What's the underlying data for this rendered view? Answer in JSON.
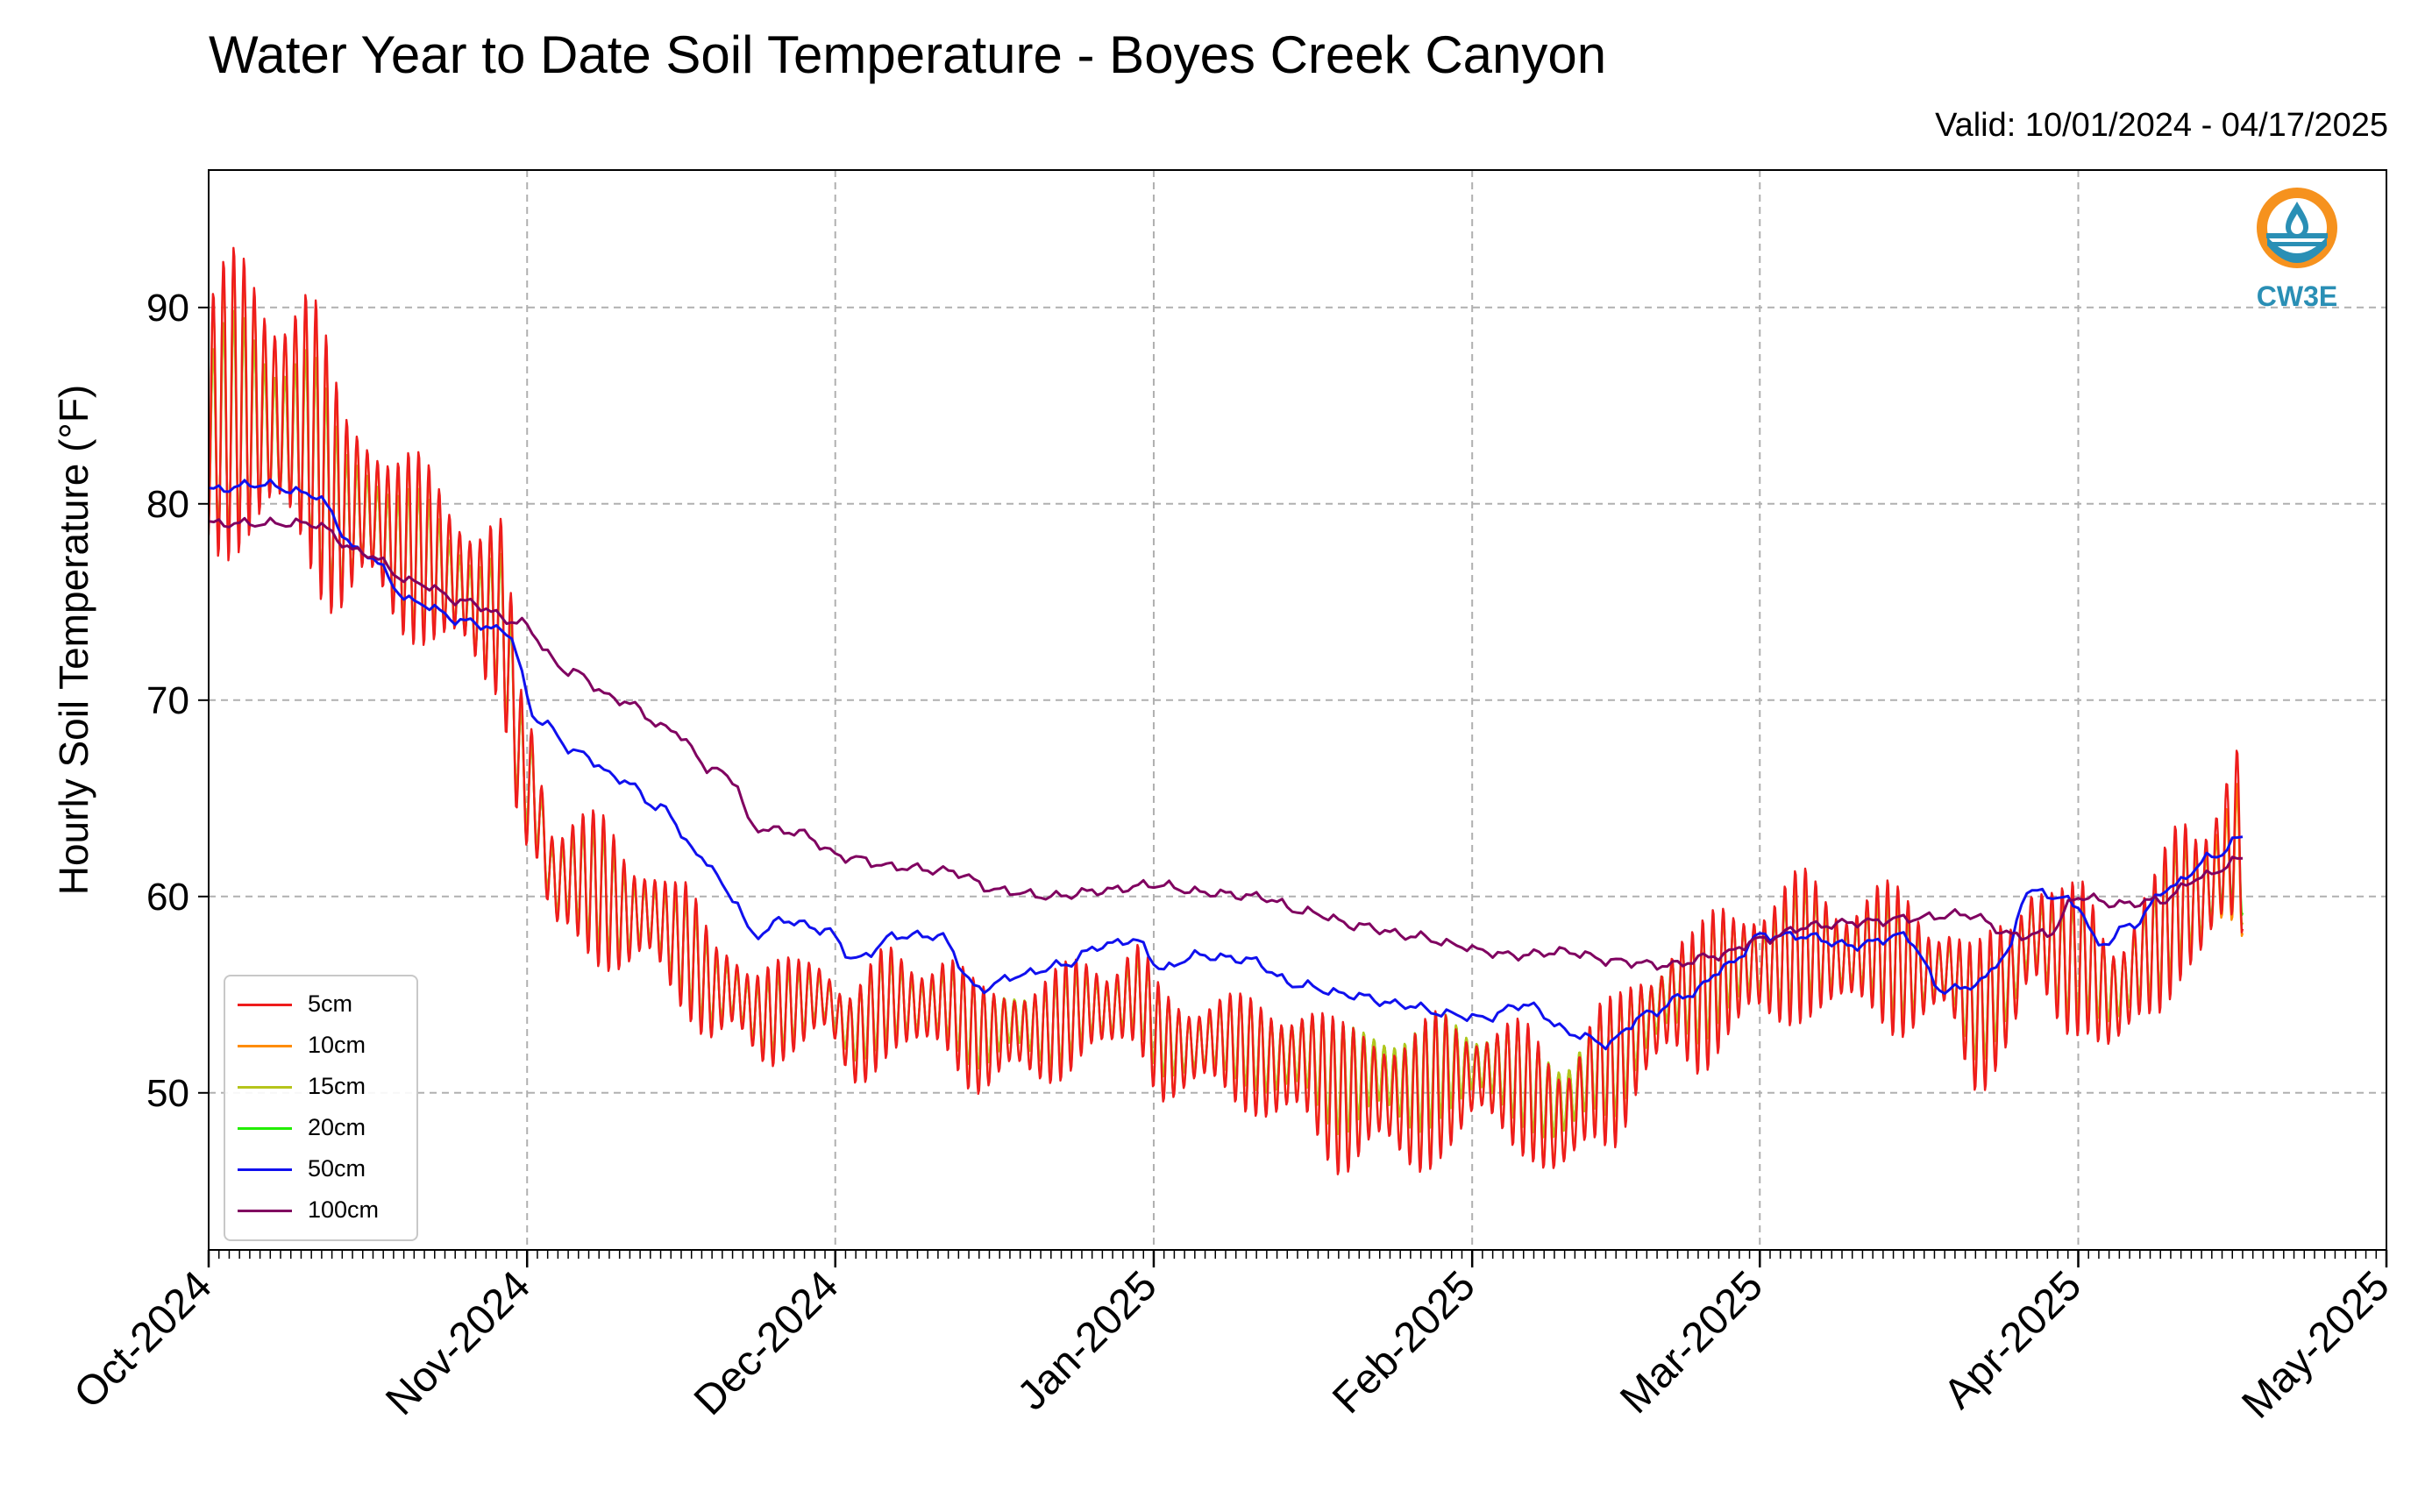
{
  "title": "Water Year to Date Soil Temperature - Boyes Creek Canyon",
  "subtitle": "Valid: 10/01/2024 - 04/17/2025",
  "logo_text": "CW3E",
  "chart_data": {
    "type": "line",
    "title": "Water Year to Date Soil Temperature - Boyes Creek Canyon",
    "subtitle": "Valid: 10/01/2024 - 04/17/2025",
    "xlabel": "",
    "ylabel": "Hourly Soil Temperature (°F)",
    "xlim": [
      "2024-10-01",
      "2025-05-01"
    ],
    "ylim": [
      42,
      97
    ],
    "x_ticks": [
      "2024-10-01",
      "2024-11-01",
      "2024-12-01",
      "2025-01-01",
      "2025-02-01",
      "2025-03-01",
      "2025-04-01",
      "2025-05-01"
    ],
    "x_tick_labels": [
      "Oct-2024",
      "Nov-2024",
      "Dec-2024",
      "Jan-2025",
      "Feb-2025",
      "Mar-2025",
      "Apr-2025",
      "May-2025"
    ],
    "y_ticks": [
      50,
      60,
      70,
      80,
      90
    ],
    "grid": true,
    "legend_position": "lower-left",
    "colors": {
      "5cm": "#ee1c1c",
      "10cm": "#ff8c00",
      "15cm": "#b5c41c",
      "20cm": "#22ee00",
      "50cm": "#1010ee",
      "100cm": "#800060"
    },
    "series": [
      {
        "name": "5cm",
        "color": "#ee1c1c",
        "x": [
          "2024-10-01",
          "2024-10-05",
          "2024-10-10",
          "2024-10-15",
          "2024-10-20",
          "2024-10-25",
          "2024-10-29",
          "2024-11-01",
          "2024-11-04",
          "2024-11-08",
          "2024-11-12",
          "2024-11-16",
          "2024-11-20",
          "2024-11-24",
          "2024-11-27",
          "2024-11-30",
          "2024-12-03",
          "2024-12-07",
          "2024-12-11",
          "2024-12-15",
          "2024-12-19",
          "2024-12-23",
          "2024-12-27",
          "2024-12-30",
          "2025-01-02",
          "2025-01-06",
          "2025-01-10",
          "2025-01-15",
          "2025-01-20",
          "2025-01-25",
          "2025-01-30",
          "2025-02-02",
          "2025-02-06",
          "2025-02-10",
          "2025-02-14",
          "2025-02-18",
          "2025-02-22",
          "2025-02-26",
          "2025-03-01",
          "2025-03-05",
          "2025-03-10",
          "2025-03-15",
          "2025-03-19",
          "2025-03-22",
          "2025-03-25",
          "2025-03-28",
          "2025-04-01",
          "2025-04-04",
          "2025-04-08",
          "2025-04-12",
          "2025-04-17"
        ],
        "mean": [
          84,
          85,
          84,
          80,
          78,
          76,
          75,
          66,
          61,
          60,
          59,
          58,
          55,
          54,
          54,
          55,
          53,
          55,
          54,
          53,
          53,
          54,
          54,
          55,
          52,
          53,
          52,
          51,
          50,
          50,
          50,
          51,
          50,
          49,
          51,
          53,
          55,
          56,
          57,
          57,
          57,
          57,
          56,
          54,
          55,
          58,
          57,
          55,
          57,
          60,
          63
        ],
        "amp": [
          8,
          8,
          8,
          6,
          5,
          5,
          5,
          4,
          4,
          4,
          3.5,
          3.5,
          3,
          3,
          2.5,
          2.5,
          3,
          3,
          3,
          3,
          3,
          3,
          3,
          3,
          3,
          3,
          3,
          4,
          4,
          4,
          4,
          3,
          3.5,
          4,
          4,
          3.5,
          4,
          4,
          4,
          4,
          3.5,
          4,
          3,
          4,
          4,
          4,
          4,
          4,
          4,
          4.5,
          6
        ]
      },
      {
        "name": "10cm",
        "color": "#ff8c00",
        "x": [
          "2024-10-01",
          "2024-10-05",
          "2024-10-10",
          "2024-10-15",
          "2024-10-20",
          "2024-10-25",
          "2024-10-29",
          "2024-11-01",
          "2024-11-04",
          "2024-11-08",
          "2024-11-12",
          "2024-11-16",
          "2024-11-20",
          "2024-11-24",
          "2024-11-27",
          "2024-11-30",
          "2024-12-03",
          "2024-12-07",
          "2024-12-11",
          "2024-12-15",
          "2024-12-19",
          "2024-12-23",
          "2024-12-27",
          "2024-12-30",
          "2025-01-02",
          "2025-01-06",
          "2025-01-10",
          "2025-01-15",
          "2025-01-20",
          "2025-01-25",
          "2025-01-30",
          "2025-02-02",
          "2025-02-06",
          "2025-02-10",
          "2025-02-14",
          "2025-02-18",
          "2025-02-22",
          "2025-02-26",
          "2025-03-01",
          "2025-03-05",
          "2025-03-10",
          "2025-03-15",
          "2025-03-19",
          "2025-03-22",
          "2025-03-25",
          "2025-03-28",
          "2025-04-01",
          "2025-04-04",
          "2025-04-08",
          "2025-04-12",
          "2025-04-17"
        ],
        "mean": [
          84,
          85,
          84,
          80,
          78,
          76,
          75,
          66,
          61,
          60,
          59,
          58,
          55,
          54,
          54,
          55,
          53,
          55,
          54,
          53,
          53,
          54,
          54,
          55,
          52,
          53,
          52,
          51,
          50,
          50,
          50,
          51,
          50,
          49,
          51,
          53,
          55,
          56,
          57,
          57,
          57,
          57,
          56,
          54,
          55,
          58,
          57,
          55,
          57,
          60,
          62
        ],
        "amp": [
          7.5,
          7.5,
          7.5,
          5.5,
          4.5,
          4.5,
          4.5,
          3.8,
          3.8,
          3.8,
          3.2,
          3.2,
          2.8,
          2.8,
          2.3,
          2.3,
          2.8,
          2.8,
          2.8,
          2.8,
          2.8,
          2.8,
          2.8,
          2.8,
          2.8,
          2.8,
          2.8,
          3.6,
          3.6,
          3.6,
          3.6,
          2.8,
          3.2,
          3.6,
          3.6,
          3.2,
          3.6,
          3.6,
          3.6,
          3.6,
          3.2,
          3.6,
          2.8,
          3.6,
          3.6,
          3.6,
          3.6,
          3.6,
          3.6,
          4,
          5
        ]
      },
      {
        "name": "15cm",
        "color": "#b5c41c",
        "x": [
          "2024-10-01",
          "2024-10-05",
          "2024-10-10",
          "2024-10-15",
          "2024-10-20",
          "2024-10-25",
          "2024-10-29",
          "2024-11-01",
          "2024-11-04",
          "2024-11-08",
          "2024-11-12",
          "2024-11-16",
          "2024-11-20",
          "2024-11-24",
          "2024-11-27",
          "2024-11-30",
          "2024-12-03",
          "2024-12-07",
          "2024-12-11",
          "2024-12-15",
          "2024-12-19",
          "2024-12-23",
          "2024-12-27",
          "2024-12-30",
          "2025-01-02",
          "2025-01-06",
          "2025-01-10",
          "2025-01-15",
          "2025-01-20",
          "2025-01-25",
          "2025-01-30",
          "2025-02-02",
          "2025-02-06",
          "2025-02-10",
          "2025-02-14",
          "2025-02-18",
          "2025-02-22",
          "2025-02-26",
          "2025-03-01",
          "2025-03-05",
          "2025-03-10",
          "2025-03-15",
          "2025-03-19",
          "2025-03-22",
          "2025-03-25",
          "2025-03-28",
          "2025-04-01",
          "2025-04-04",
          "2025-04-08",
          "2025-04-12",
          "2025-04-17"
        ],
        "mean": [
          83,
          84,
          83,
          79.5,
          77.5,
          75.5,
          74.5,
          66,
          61,
          60,
          59,
          58,
          55,
          54,
          54,
          55,
          53.5,
          55,
          54,
          53.5,
          53.5,
          54,
          54,
          55,
          52.5,
          53,
          52.5,
          51.5,
          51,
          51,
          51,
          51.5,
          50.5,
          50,
          51.5,
          53.5,
          55.5,
          56.5,
          57,
          57,
          57,
          57,
          56,
          54.5,
          55.5,
          58,
          57,
          55.5,
          57,
          60,
          62
        ]
      },
      {
        "name": "20cm",
        "color": "#22ee00",
        "x": [
          "2024-10-01",
          "2024-10-05",
          "2024-10-10",
          "2024-10-15",
          "2024-10-20",
          "2024-10-25",
          "2024-10-29",
          "2024-11-01",
          "2024-11-04",
          "2024-11-08",
          "2024-11-12",
          "2024-11-16",
          "2024-11-20",
          "2024-11-24",
          "2024-11-27",
          "2024-11-30",
          "2024-12-03",
          "2024-12-07",
          "2024-12-11",
          "2024-12-15",
          "2024-12-19",
          "2024-12-23",
          "2024-12-27",
          "2024-12-30",
          "2025-01-02",
          "2025-01-06",
          "2025-01-10",
          "2025-01-15",
          "2025-01-20",
          "2025-01-25",
          "2025-01-30",
          "2025-02-02",
          "2025-02-06",
          "2025-02-10",
          "2025-02-14",
          "2025-02-18",
          "2025-02-22",
          "2025-02-26",
          "2025-03-01",
          "2025-03-05",
          "2025-03-10",
          "2025-03-15",
          "2025-03-19",
          "2025-03-22",
          "2025-03-25",
          "2025-03-28",
          "2025-04-01",
          "2025-04-04",
          "2025-04-08",
          "2025-04-12",
          "2025-04-17"
        ],
        "mean": [
          83,
          84,
          83,
          79.5,
          77.5,
          75.5,
          74.5,
          66,
          61,
          60,
          59,
          58,
          55,
          54,
          54,
          55,
          53.5,
          55,
          54,
          53.5,
          53.5,
          54,
          54,
          55,
          52.5,
          53,
          52.5,
          51.5,
          51,
          51,
          51,
          51.5,
          50.5,
          50,
          51.5,
          53.5,
          55.5,
          56.5,
          57,
          57,
          57,
          57,
          56,
          54.5,
          55.5,
          58,
          57,
          55.5,
          57,
          60,
          62.5
        ]
      },
      {
        "name": "50cm",
        "color": "#1010ee",
        "x": [
          "2024-10-01",
          "2024-10-06",
          "2024-10-11",
          "2024-10-16",
          "2024-10-21",
          "2024-10-26",
          "2024-10-30",
          "2024-11-02",
          "2024-11-06",
          "2024-11-10",
          "2024-11-14",
          "2024-11-18",
          "2024-11-21",
          "2024-11-23",
          "2024-11-26",
          "2024-11-30",
          "2024-12-03",
          "2024-12-07",
          "2024-12-11",
          "2024-12-15",
          "2024-12-19",
          "2024-12-23",
          "2024-12-27",
          "2024-12-30",
          "2025-01-02",
          "2025-01-05",
          "2025-01-10",
          "2025-01-15",
          "2025-01-20",
          "2025-01-25",
          "2025-01-30",
          "2025-02-02",
          "2025-02-06",
          "2025-02-11",
          "2025-02-14",
          "2025-02-18",
          "2025-02-22",
          "2025-02-26",
          "2025-03-01",
          "2025-03-05",
          "2025-03-10",
          "2025-03-15",
          "2025-03-19",
          "2025-03-22",
          "2025-03-25",
          "2025-03-27",
          "2025-03-30",
          "2025-04-01",
          "2025-04-03",
          "2025-04-06",
          "2025-04-10",
          "2025-04-14",
          "2025-04-17"
        ],
        "values": [
          80.7,
          81,
          80.5,
          77.5,
          75,
          74,
          73.5,
          69,
          67.3,
          66,
          64.5,
          62,
          60,
          58,
          58.8,
          58.3,
          56.8,
          58,
          58,
          55.3,
          56,
          56.5,
          57.5,
          57.8,
          56.3,
          57,
          56.8,
          55.5,
          55,
          54.5,
          54,
          53.8,
          54.5,
          53,
          52.5,
          54,
          55,
          56.5,
          58,
          58,
          57.5,
          58,
          55.2,
          55.5,
          57,
          60.3,
          60,
          59.5,
          57.5,
          58.5,
          60.5,
          62,
          63
        ]
      },
      {
        "name": "100cm",
        "color": "#800060",
        "x": [
          "2024-10-01",
          "2024-10-06",
          "2024-10-11",
          "2024-10-16",
          "2024-10-21",
          "2024-10-26",
          "2024-10-31",
          "2024-11-05",
          "2024-11-10",
          "2024-11-15",
          "2024-11-19",
          "2024-11-21",
          "2024-11-23",
          "2024-11-27",
          "2024-12-02",
          "2024-12-07",
          "2024-12-12",
          "2024-12-17",
          "2024-12-22",
          "2024-12-27",
          "2025-01-01",
          "2025-01-06",
          "2025-01-11",
          "2025-01-16",
          "2025-01-21",
          "2025-01-26",
          "2025-01-31",
          "2025-02-02",
          "2025-02-05",
          "2025-02-10",
          "2025-02-15",
          "2025-02-20",
          "2025-02-25",
          "2025-03-01",
          "2025-03-06",
          "2025-03-11",
          "2025-03-16",
          "2025-03-21",
          "2025-03-26",
          "2025-03-29",
          "2025-04-01",
          "2025-04-05",
          "2025-04-09",
          "2025-04-13",
          "2025-04-17"
        ],
        "values": [
          79,
          79,
          79,
          77.5,
          76,
          75,
          74,
          71.5,
          70,
          68.5,
          66.5,
          66,
          63.5,
          63.3,
          62,
          61.5,
          61.3,
          60.3,
          60,
          60.3,
          60.6,
          60.2,
          60,
          59.2,
          58.5,
          58,
          57.5,
          57.2,
          57,
          57.2,
          56.7,
          56.5,
          57,
          57.8,
          58.5,
          58.7,
          58.9,
          59.1,
          58,
          58.1,
          60,
          59.6,
          59.8,
          61,
          61.9
        ]
      }
    ]
  },
  "legend": {
    "items": [
      {
        "label": "5cm",
        "color": "#ee1c1c"
      },
      {
        "label": "10cm",
        "color": "#ff8c00"
      },
      {
        "label": "15cm",
        "color": "#b5c41c"
      },
      {
        "label": "20cm",
        "color": "#22ee00"
      },
      {
        "label": "50cm",
        "color": "#1010ee"
      },
      {
        "label": "100cm",
        "color": "#800060"
      }
    ]
  }
}
